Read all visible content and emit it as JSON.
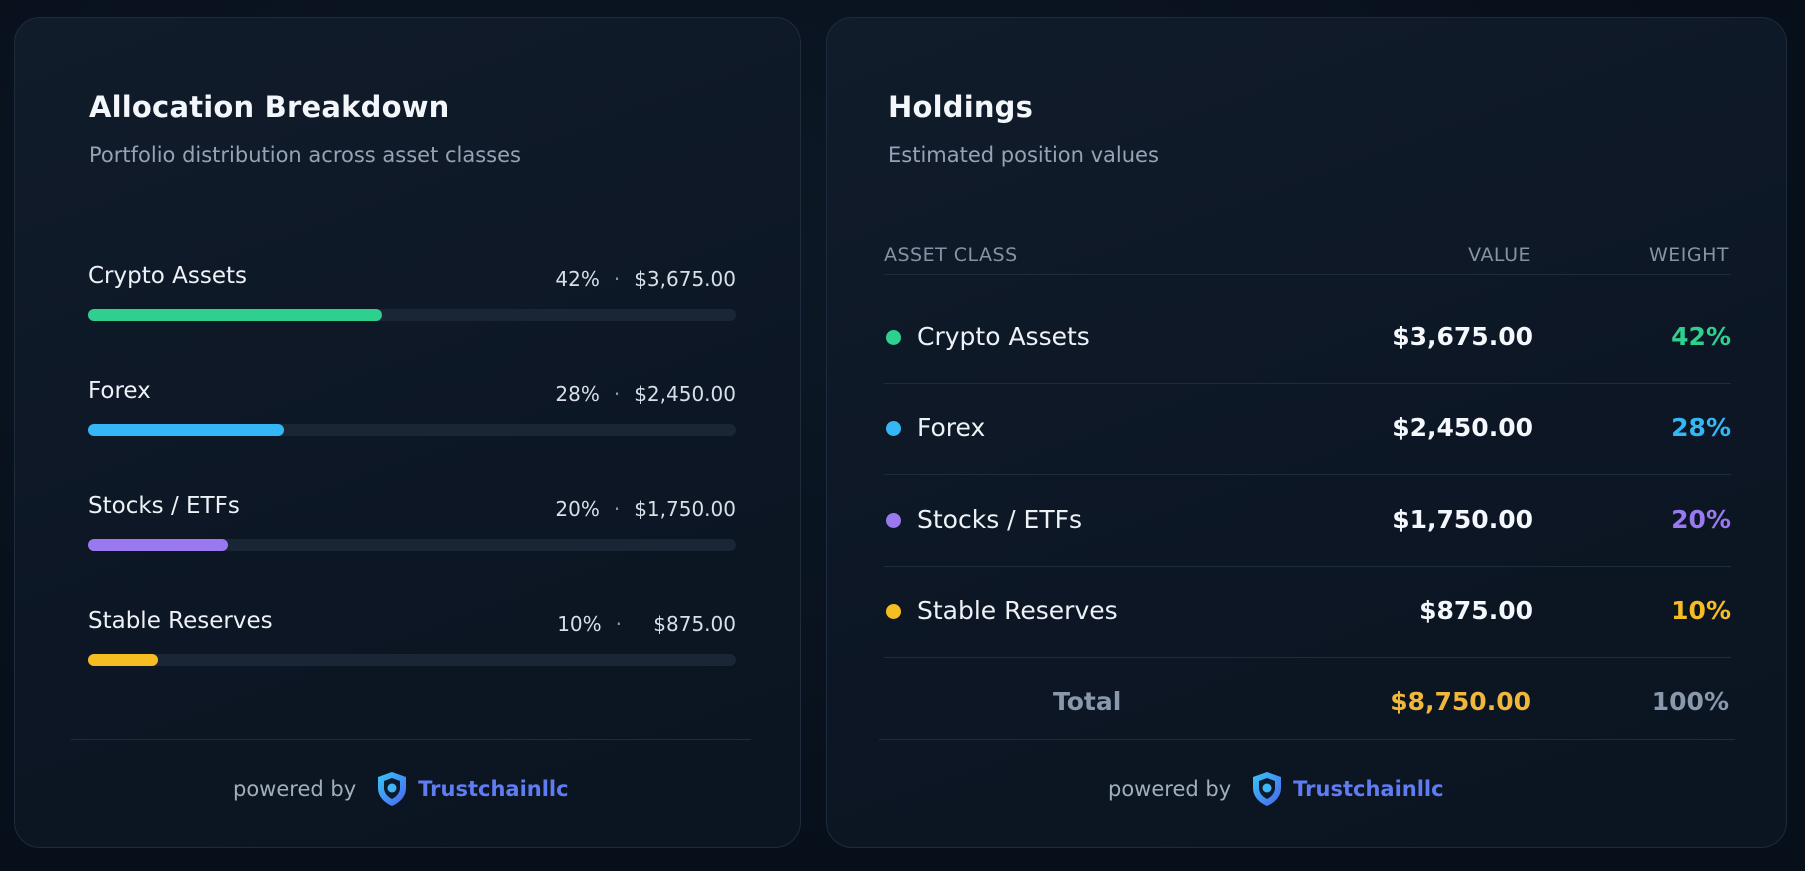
{
  "allocation": {
    "title": "Allocation Breakdown",
    "subtitle": "Portfolio distribution across asset classes",
    "rows": [
      {
        "name": "Crypto Assets",
        "percent_label": "42%",
        "amount": "$3,675.00",
        "fraction": 0.42,
        "color": "#2fd08f"
      },
      {
        "name": "Forex",
        "percent_label": "28%",
        "amount": "$2,450.00",
        "fraction": 0.28,
        "color": "#35b6f5"
      },
      {
        "name": "Stocks / ETFs",
        "percent_label": "20%",
        "amount": "$1,750.00",
        "fraction": 0.2,
        "color": "#9a78f0"
      },
      {
        "name": "Stable Reserves",
        "percent_label": "10%",
        "amount": "$875.00",
        "fraction": 0.1,
        "color": "#f5bd22"
      }
    ],
    "separator": "·",
    "powered_by": "powered by",
    "brand": "Trustchainllc"
  },
  "holdings": {
    "title": "Holdings",
    "subtitle": "Estimated position values",
    "columns": {
      "asset_class": "ASSET CLASS",
      "value": "VALUE",
      "weight": "WEIGHT"
    },
    "rows": [
      {
        "name": "Crypto Assets",
        "value": "$3,675.00",
        "weight": "42%",
        "color": "#2fd08f"
      },
      {
        "name": "Forex",
        "value": "$2,450.00",
        "weight": "28%",
        "color": "#35b6f5"
      },
      {
        "name": "Stocks / ETFs",
        "value": "$1,750.00",
        "weight": "20%",
        "color": "#9a78f0"
      },
      {
        "name": "Stable Reserves",
        "value": "$875.00",
        "weight": "10%",
        "color": "#f5bd22"
      }
    ],
    "total": {
      "label": "Total",
      "value": "$8,750.00",
      "weight": "100%"
    },
    "powered_by": "powered by",
    "brand": "Trustchainllc"
  },
  "icons": {
    "brand_logo": "shield-logo-icon"
  }
}
